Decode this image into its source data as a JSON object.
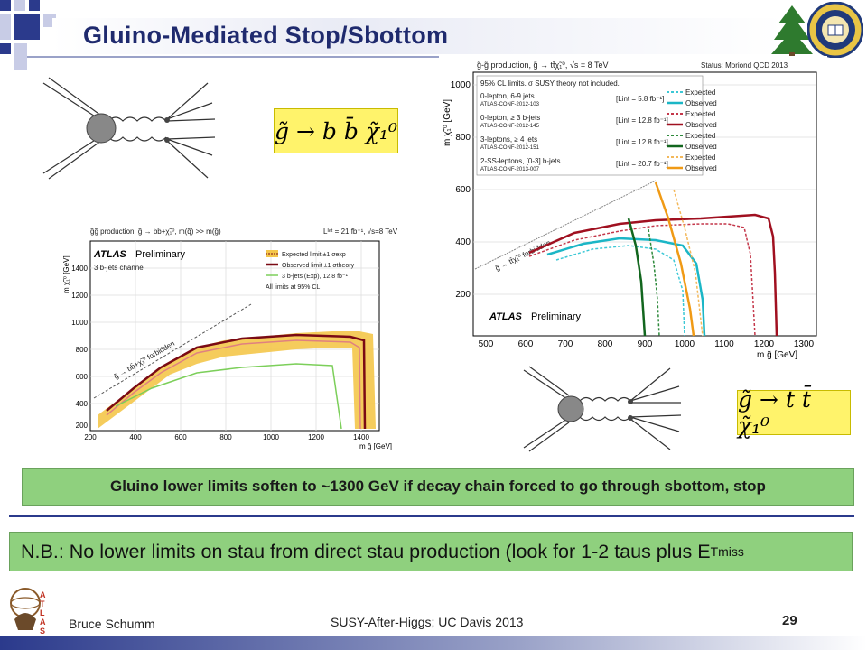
{
  "slide": {
    "title": "Gluino-Mediated Stop/Sbottom",
    "caption": "Gluino lower limits soften to ~1300 GeV if decay chain forced to go through sbottom, stop",
    "nb_text": "N.B.: No lower limits on stau from direct stau production (look for 1-2 taus plus E",
    "nb_sub": "T",
    "nb_sup": "miss",
    "footer_author": "Bruce Schumm",
    "footer_center": "SUSY-After-Higgs; UC Davis 2013",
    "page_number": "29",
    "formula_top": "g̃ → b b̄ χ̃₁⁰",
    "formula_bottom": "g̃ → t t̄ χ̃₁⁰"
  },
  "left_plot": {
    "header_left": "g̃g̃ production, g̃ → bb̄+χ̃₁⁰, m(q̃) >> m(g̃)",
    "header_right": "Lᴵⁿᵗ = 21 fb⁻¹, √s=8 TeV",
    "atlas": "ATLAS",
    "preliminary": "Preliminary",
    "channel": "3 b-jets channel",
    "legend": [
      "Expected limit ±1 σexp",
      "Observed limit ±1 σtheory",
      "3 b-jets (Exp), 12.8 fb⁻¹",
      "All limits at 95% CL"
    ],
    "forbidden": "g̃ → bb̄+χ̃₁⁰ forbidden",
    "ylabel": "m χ̃₁⁰ [GeV]",
    "xlabel": "m g̃ [GeV]",
    "yticks": [
      "1400",
      "1200",
      "1000",
      "800",
      "600",
      "400",
      "200"
    ],
    "xticks": [
      "200",
      "400",
      "600",
      "800",
      "1000",
      "1200",
      "1400"
    ]
  },
  "right_plot": {
    "header_left": "g̃-g̃ production, g̃ → tt̄χ̃₁⁰, √s = 8 TeV",
    "header_right": "Status: Moriond QCD 2013",
    "cl_note": "95% CL limits. σ SUSY theory not included.",
    "rows": [
      {
        "a": "0-lepton, 6-9 jets",
        "b": "ATLAS-CONF-2012-103",
        "lumi": "[Lint = 5.8 fb⁻¹]"
      },
      {
        "a": "0-lepton, ≥ 3 b-jets",
        "b": "ATLAS-CONF-2012-145",
        "lumi": "[Lint = 12.8 fb⁻¹]"
      },
      {
        "a": "3-leptons, ≥ 4 jets",
        "b": "ATLAS-CONF-2012-151",
        "lumi": "[Lint = 12.8 fb⁻¹]"
      },
      {
        "a": "2-SS-leptons, [0-3] b-jets",
        "b": "ATLAS-CONF-2013-007",
        "lumi": "[Lint = 20.7 fb⁻¹]"
      }
    ],
    "legend_labels": [
      "Expected",
      "Observed",
      "Expected",
      "Observed",
      "Expected",
      "Observed",
      "Expected",
      "Observed"
    ],
    "legend_colors": [
      "#3cc8d6",
      "#1bb6c6",
      "#c4374a",
      "#a01020",
      "#2e8a3c",
      "#12661e",
      "#f3b85a",
      "#f09a15"
    ],
    "forbidden": "g̃ → tt̄χ̃₁⁰ forbidden",
    "atlas": "ATLAS",
    "preliminary": "Preliminary",
    "ylabel": "m χ̃₁⁰ [GeV]",
    "xlabel": "m g̃ [GeV]",
    "yticks": [
      "1000",
      "800",
      "600",
      "400",
      "200"
    ],
    "xticks": [
      "500",
      "600",
      "700",
      "800",
      "900",
      "1000",
      "1100",
      "1200",
      "1300"
    ]
  }
}
